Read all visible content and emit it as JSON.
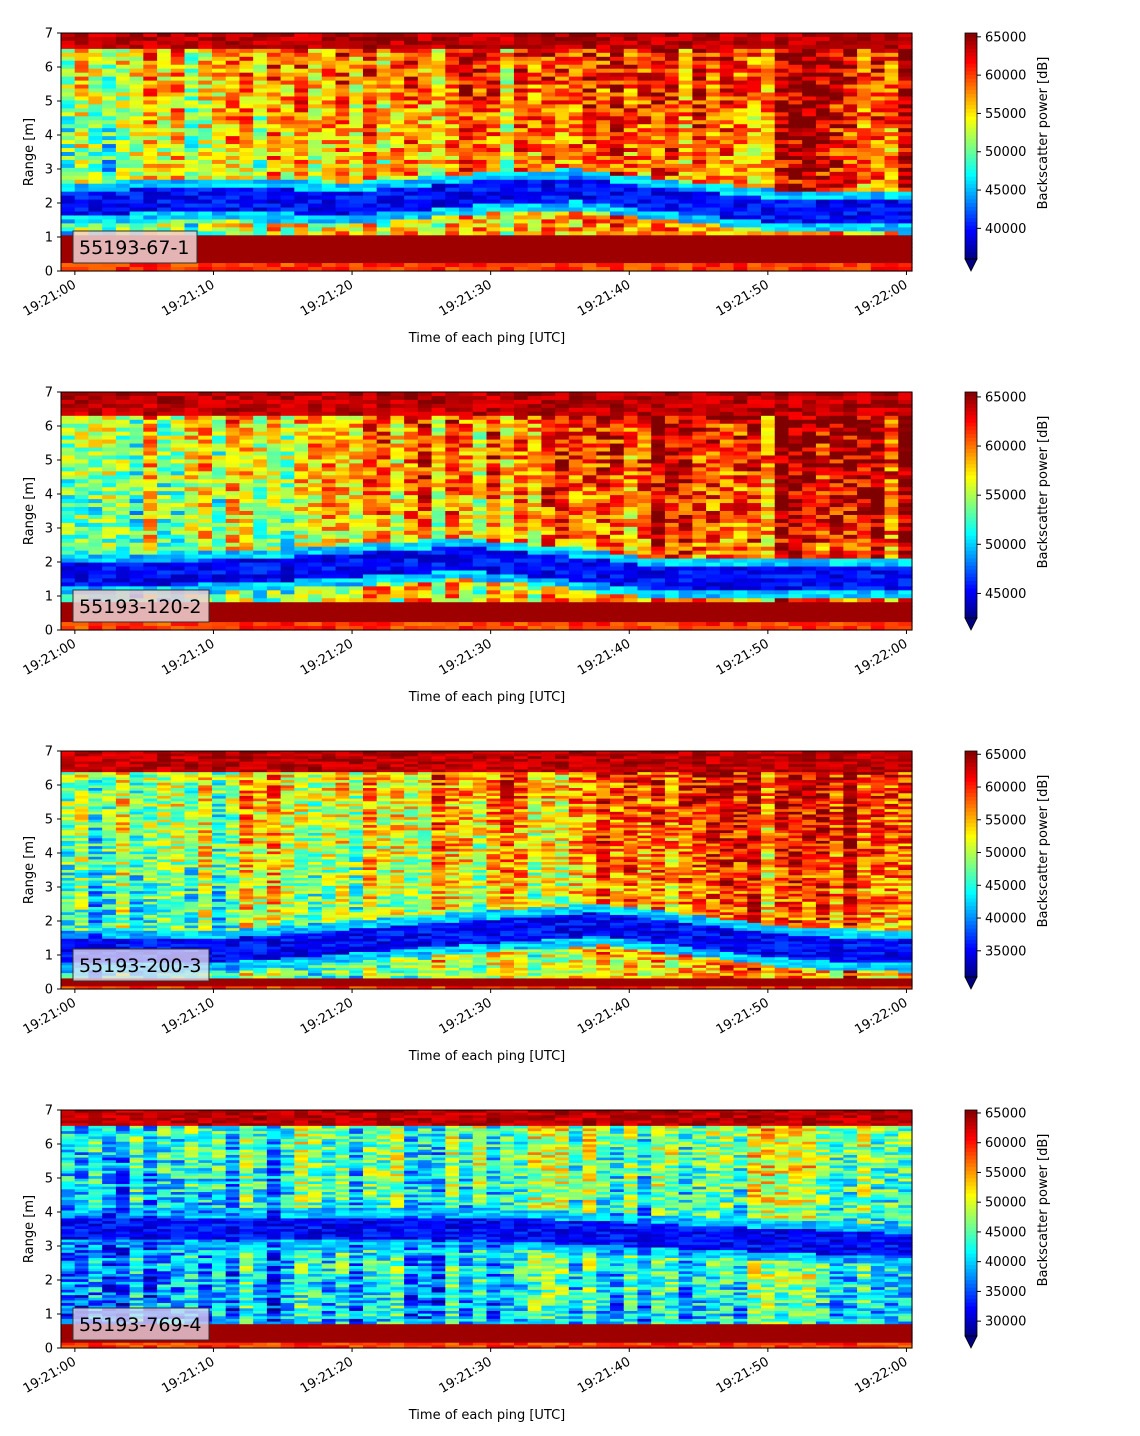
{
  "chart_data": [
    {
      "type": "heatmap",
      "label": "55193-67-1",
      "xlabel": "Time of each ping [UTC]",
      "ylabel": "Range [m]",
      "ylim": [
        0,
        7
      ],
      "yticks": [
        "0",
        "1",
        "2",
        "3",
        "4",
        "5",
        "6",
        "7"
      ],
      "xticks": [
        "19:21:00",
        "19:21:10",
        "19:21:20",
        "19:21:30",
        "19:21:40",
        "19:21:50",
        "19:22:00"
      ],
      "colorbar": {
        "label": "Backscatter power [dB]",
        "vmin": 36000,
        "vmax": 65500,
        "ticks": [
          "40000",
          "45000",
          "50000",
          "55000",
          "60000",
          "65000"
        ],
        "tick_values": [
          40000,
          45000,
          50000,
          55000,
          60000,
          65000
        ],
        "extend": "min"
      },
      "grid": false,
      "features": {
        "bottom_band_top": 1.1,
        "low_band": [
          [
            0,
            2.0
          ],
          [
            10,
            2.1
          ],
          [
            20,
            2.0
          ],
          [
            30,
            2.3
          ],
          [
            36,
            2.4
          ],
          [
            42,
            2.1
          ],
          [
            50,
            1.8
          ],
          [
            60,
            1.7
          ]
        ],
        "top_band_bottom": 6.5,
        "trend": "values increase toward later pings above 2 m"
      }
    },
    {
      "type": "heatmap",
      "label": "55193-120-2",
      "xlabel": "Time of each ping [UTC]",
      "ylabel": "Range [m]",
      "ylim": [
        0,
        7
      ],
      "yticks": [
        "0",
        "1",
        "2",
        "3",
        "4",
        "5",
        "6",
        "7"
      ],
      "xticks": [
        "19:21:00",
        "19:21:10",
        "19:21:20",
        "19:21:30",
        "19:21:40",
        "19:21:50",
        "19:22:00"
      ],
      "colorbar": {
        "label": "Backscatter power [dB]",
        "vmin": 42500,
        "vmax": 65500,
        "ticks": [
          "45000",
          "50000",
          "55000",
          "60000",
          "65000"
        ],
        "tick_values": [
          45000,
          50000,
          55000,
          60000,
          65000
        ],
        "extend": "min"
      },
      "grid": false,
      "features": {
        "bottom_band_top": 0.8,
        "low_band": [
          [
            0,
            1.6
          ],
          [
            10,
            1.7
          ],
          [
            20,
            1.9
          ],
          [
            28,
            2.1
          ],
          [
            36,
            1.8
          ],
          [
            42,
            1.5
          ],
          [
            50,
            1.5
          ],
          [
            60,
            1.5
          ]
        ],
        "top_band_bottom": 6.3,
        "trend": "values increase toward later pings above 2 m"
      }
    },
    {
      "type": "heatmap",
      "label": "55193-200-3",
      "xlabel": "Time of each ping [UTC]",
      "ylabel": "Range [m]",
      "ylim": [
        0,
        7
      ],
      "yticks": [
        "0",
        "1",
        "2",
        "3",
        "4",
        "5",
        "6",
        "7"
      ],
      "xticks": [
        "19:21:00",
        "19:21:10",
        "19:21:20",
        "19:21:30",
        "19:21:40",
        "19:21:50",
        "19:22:00"
      ],
      "colorbar": {
        "label": "Backscatter power [dB]",
        "vmin": 31000,
        "vmax": 65500,
        "ticks": [
          "35000",
          "40000",
          "45000",
          "50000",
          "55000",
          "60000",
          "65000"
        ],
        "tick_values": [
          35000,
          40000,
          45000,
          50000,
          55000,
          60000,
          65000
        ],
        "extend": "min"
      },
      "grid": false,
      "features": {
        "bottom_band_top": 0.3,
        "low_band": [
          [
            0,
            1.1
          ],
          [
            10,
            1.1
          ],
          [
            20,
            1.4
          ],
          [
            30,
            1.7
          ],
          [
            38,
            1.9
          ],
          [
            44,
            1.6
          ],
          [
            52,
            1.2
          ],
          [
            60,
            1.1
          ]
        ],
        "top_band_bottom": 6.4,
        "trend": "values increase toward later pings above 2 m"
      }
    },
    {
      "type": "heatmap",
      "label": "55193-769-4",
      "xlabel": "Time of each ping [UTC]",
      "ylabel": "Range [m]",
      "ylim": [
        0,
        7
      ],
      "yticks": [
        "0",
        "1",
        "2",
        "3",
        "4",
        "5",
        "6",
        "7"
      ],
      "xticks": [
        "19:21:00",
        "19:21:10",
        "19:21:20",
        "19:21:30",
        "19:21:40",
        "19:21:50",
        "19:22:00"
      ],
      "colorbar": {
        "label": "Backscatter power [dB]",
        "vmin": 27500,
        "vmax": 65500,
        "ticks": [
          "30000",
          "35000",
          "40000",
          "45000",
          "50000",
          "55000",
          "60000",
          "65000"
        ],
        "tick_values": [
          30000,
          35000,
          40000,
          45000,
          50000,
          55000,
          60000,
          65000
        ],
        "extend": "min"
      },
      "grid": false,
      "features": {
        "bottom_band_top": 0.7,
        "low_band": [
          [
            0,
            3.5
          ],
          [
            30,
            3.5
          ],
          [
            60,
            3.0
          ]
        ],
        "top_band_bottom": 6.5,
        "trend": "mostly low values; slight increase toward later pings"
      }
    }
  ],
  "colormap": "jet"
}
